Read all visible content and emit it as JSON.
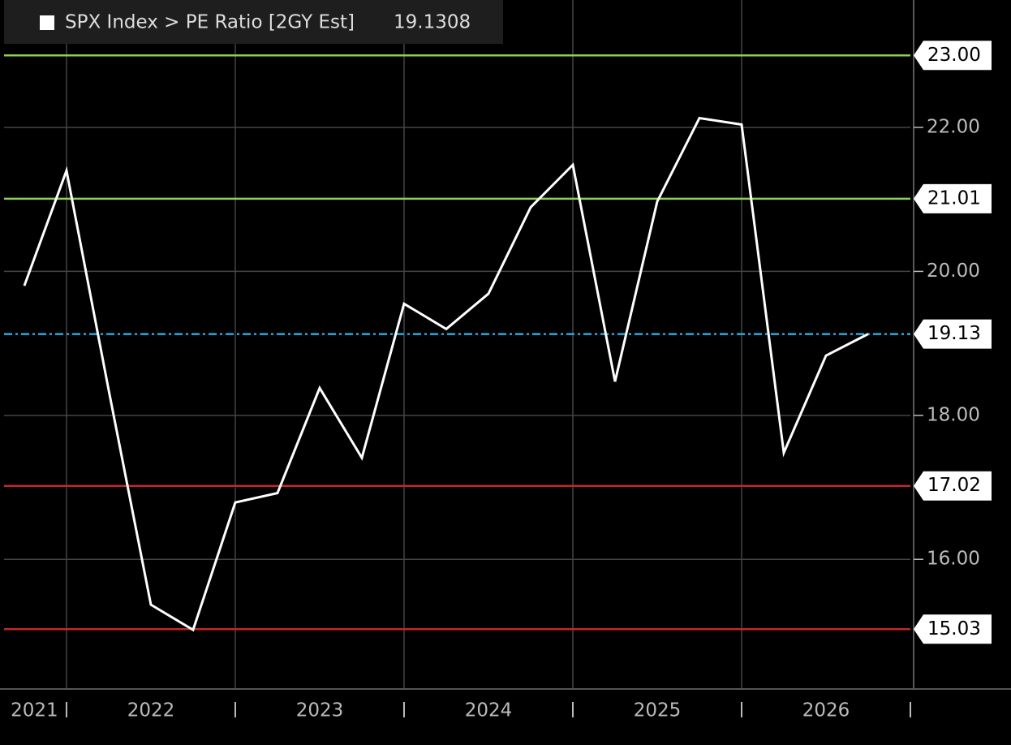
{
  "chart_data": {
    "type": "line",
    "title": "SPX Index > PE Ratio [2GY Est]",
    "last_value": 19.1308,
    "x": [
      2021.75,
      2022.0,
      2022.25,
      2022.5,
      2022.75,
      2023.0,
      2023.25,
      2023.5,
      2023.75,
      2024.0,
      2024.25,
      2024.5,
      2024.75,
      2025.0,
      2025.25,
      2025.5,
      2025.75,
      2026.0,
      2026.25,
      2026.5,
      2026.75
    ],
    "values": [
      19.8,
      21.4,
      18.35,
      15.37,
      15.02,
      16.79,
      16.92,
      18.38,
      17.41,
      19.55,
      19.2,
      19.69,
      20.89,
      21.48,
      18.47,
      20.97,
      22.13,
      22.04,
      17.48,
      18.83,
      19.1308
    ],
    "color": "#ffffff",
    "xlim": [
      2021.63,
      2027.0
    ],
    "ylim": [
      14.21,
      23.77
    ],
    "xticks": [
      {
        "value": 2021.81,
        "label": "2021"
      },
      {
        "value": 2022.5,
        "label": "2022"
      },
      {
        "value": 2023.5,
        "label": "2023"
      },
      {
        "value": 2024.5,
        "label": "2024"
      },
      {
        "value": 2025.5,
        "label": "2025"
      },
      {
        "value": 2026.5,
        "label": "2026"
      }
    ],
    "xgrid": [
      2022,
      2023,
      2024,
      2025,
      2026,
      2027
    ],
    "yticks": [
      {
        "value": 22,
        "label": "22.00"
      },
      {
        "value": 20,
        "label": "20.00"
      },
      {
        "value": 18,
        "label": "18.00"
      },
      {
        "value": 16,
        "label": "16.00"
      }
    ],
    "hlines": [
      {
        "value": 23,
        "label": "23.00",
        "color": "#8fd14f",
        "style": "solid"
      },
      {
        "value": 21.01,
        "label": "21.01",
        "color": "#8fd14f",
        "style": "solid"
      },
      {
        "value": 19.13,
        "label": "19.13",
        "color": "#29a8e0",
        "style": "dashed"
      },
      {
        "value": 17.02,
        "label": "17.02",
        "color": "#c0282a",
        "style": "solid"
      },
      {
        "value": 15.03,
        "label": "15.03",
        "color": "#c0282a",
        "style": "solid"
      }
    ],
    "grid": true
  }
}
